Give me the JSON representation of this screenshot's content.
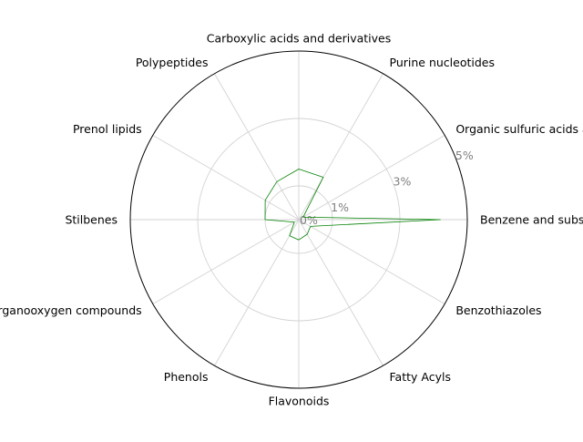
{
  "chart_data": {
    "type": "radar",
    "categories": [
      "Benzene and substituted derivatives",
      "Organic sulfuric acids and derivatives",
      "Purine nucleotides",
      "Carboxylic acids and derivatives",
      "Polypeptides",
      "Prenol lipids",
      "Stilbenes",
      "Organooxygen compounds",
      "Phenols",
      "Flavonoids",
      "Fatty Acyls",
      "Benzothiazoles"
    ],
    "series": [
      {
        "values": [
          4.2,
          0.15,
          1.45,
          1.5,
          1.3,
          1.15,
          1.0,
          0.15,
          0.55,
          0.6,
          0.5,
          0.4
        ],
        "color": "#008000"
      }
    ],
    "radial_ticks": [
      0,
      1,
      3,
      5
    ],
    "radial_tick_labels": [
      "0%",
      "1%",
      "3%",
      "5%"
    ],
    "rlim": [
      0,
      5
    ],
    "grid": true,
    "legend": "none"
  }
}
